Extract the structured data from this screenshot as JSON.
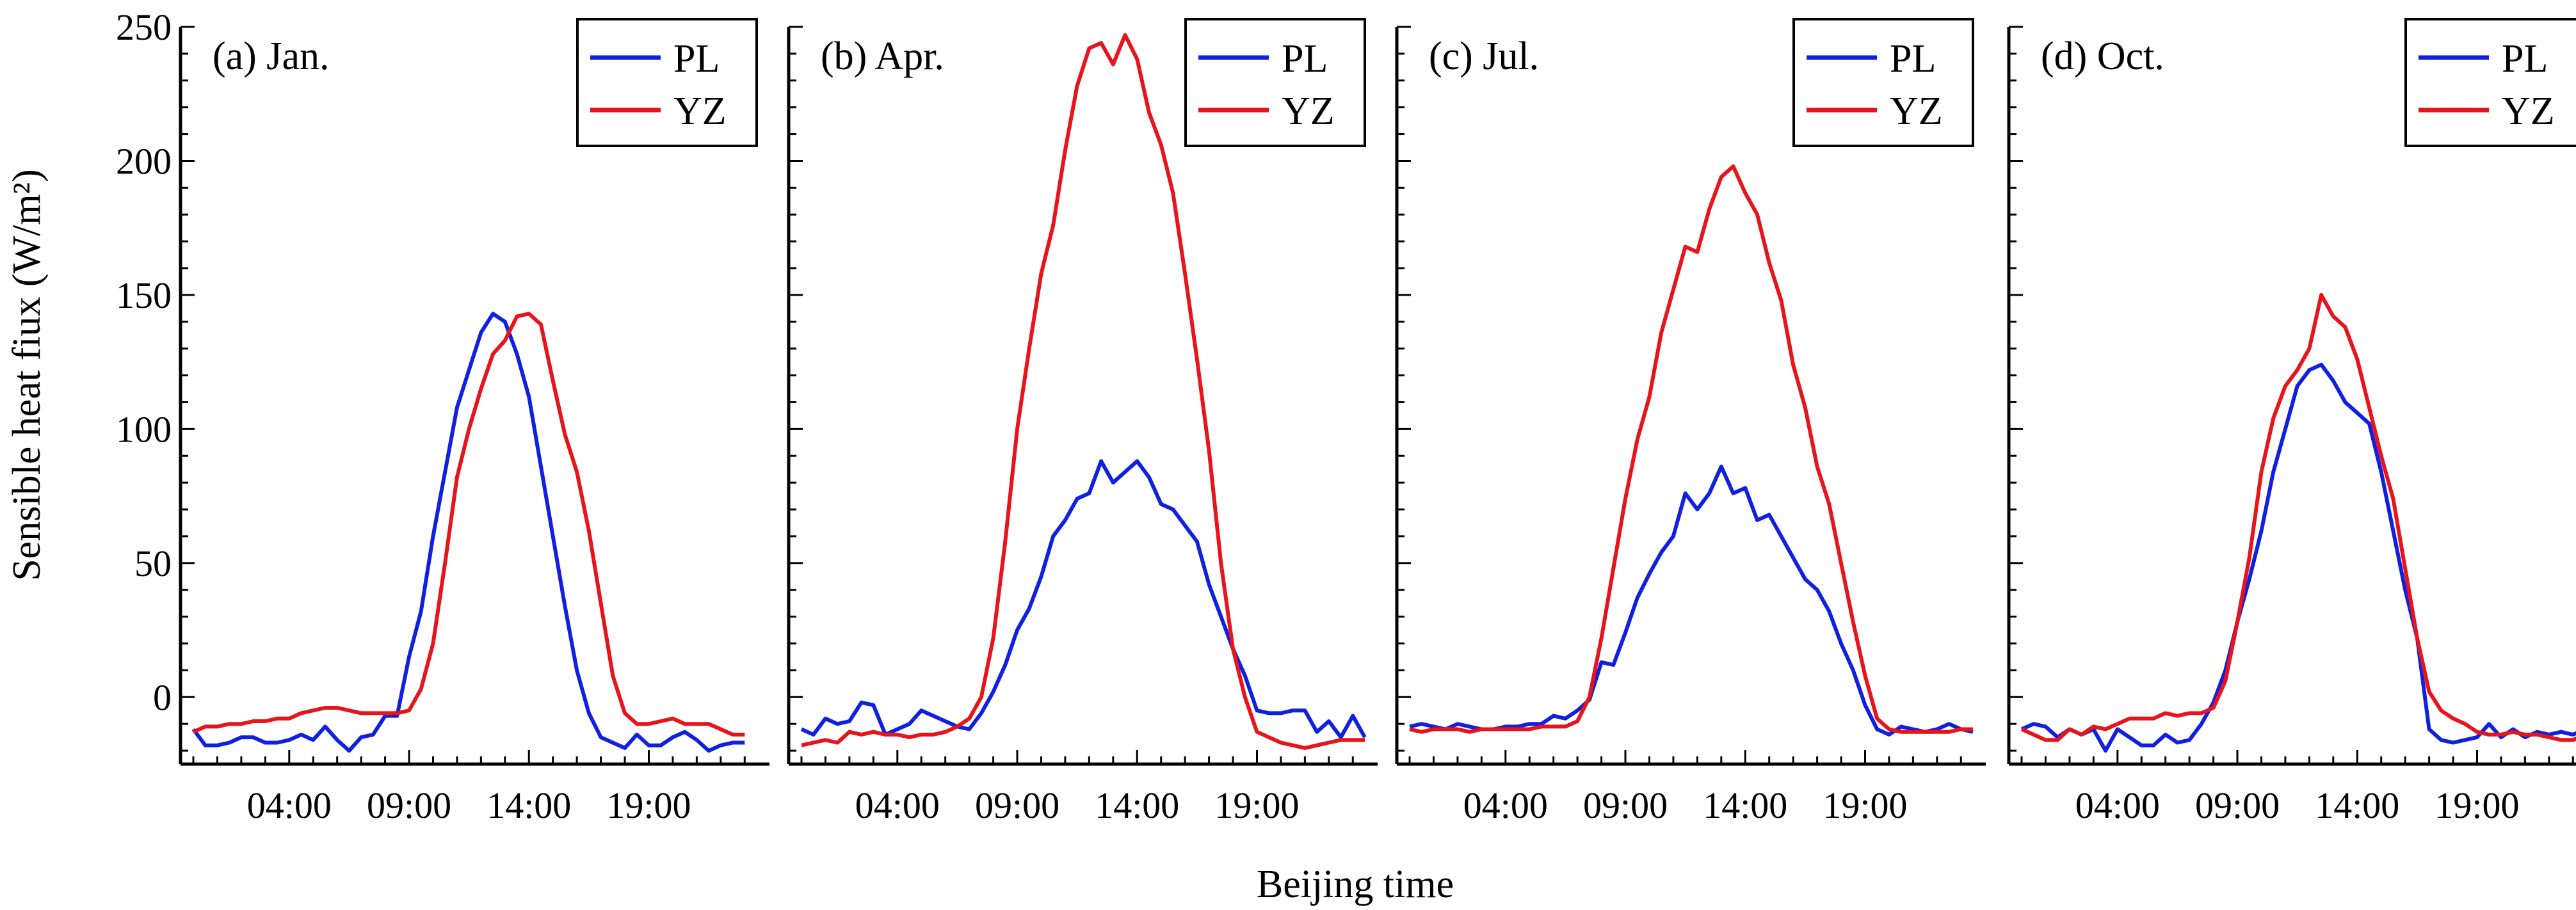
{
  "chart_data": {
    "type": "line",
    "ylabel": "Sensible heat fiux (W/m²)",
    "xlabel": "Beijing time",
    "ylim": [
      -25,
      250
    ],
    "yticks": [
      0,
      50,
      100,
      150,
      200,
      250
    ],
    "xticks": [
      4,
      9,
      14,
      19
    ],
    "xtick_labels": [
      "04:00",
      "09:00",
      "14:00",
      "19:00"
    ],
    "x_range": [
      0,
      23.5
    ],
    "legend_position": "top-right",
    "series_colors": {
      "PL": "#1020e0",
      "YZ": "#e8141c"
    },
    "x": [
      0,
      0.5,
      1,
      1.5,
      2,
      2.5,
      3,
      3.5,
      4,
      4.5,
      5,
      5.5,
      6,
      6.5,
      7,
      7.5,
      8,
      8.5,
      9,
      9.5,
      10,
      10.5,
      11,
      11.5,
      12,
      12.5,
      13,
      13.5,
      14,
      14.5,
      15,
      15.5,
      16,
      16.5,
      17,
      17.5,
      18,
      18.5,
      19,
      19.5,
      20,
      20.5,
      21,
      21.5,
      22,
      22.5,
      23,
      23.5
    ],
    "panels": [
      {
        "label": "(a) Jan.",
        "series": [
          {
            "name": "PL",
            "values": [
              -12,
              -18,
              -18,
              -17,
              -15,
              -15,
              -17,
              -17,
              -16,
              -14,
              -16,
              -11,
              -16,
              -20,
              -15,
              -14,
              -7,
              -7,
              15,
              32,
              60,
              84,
              108,
              122,
              136,
              143,
              140,
              128,
              112,
              86,
              60,
              34,
              10,
              -6,
              -15,
              -17,
              -19,
              -14,
              -18,
              -18,
              -15,
              -13,
              -16,
              -20,
              -18,
              -17,
              -17,
              null
            ]
          },
          {
            "name": "YZ",
            "values": [
              -13,
              -11,
              -11,
              -10,
              -10,
              -9,
              -9,
              -8,
              -8,
              -6,
              -5,
              -4,
              -4,
              -5,
              -6,
              -6,
              -6,
              -6,
              -5,
              3,
              20,
              50,
              82,
              100,
              115,
              128,
              133,
              142,
              143,
              139,
              118,
              98,
              84,
              62,
              35,
              8,
              -6,
              -10,
              -10,
              -9,
              -8,
              -10,
              -10,
              -10,
              -12,
              -14,
              -14,
              null
            ]
          }
        ]
      },
      {
        "label": "(b) Apr.",
        "series": [
          {
            "name": "PL",
            "values": [
              -12,
              -14,
              -8,
              -10,
              -9,
              -2,
              -3,
              -14,
              -12,
              -10,
              -5,
              -7,
              -9,
              -11,
              -12,
              -6,
              2,
              12,
              25,
              33,
              45,
              60,
              66,
              74,
              76,
              88,
              80,
              84,
              88,
              82,
              72,
              70,
              64,
              58,
              42,
              30,
              18,
              8,
              -5,
              -6,
              -6,
              -5,
              -5,
              -13,
              -9,
              -15,
              -7,
              -15
            ]
          },
          {
            "name": "YZ",
            "values": [
              -18,
              -17,
              -16,
              -17,
              -13,
              -14,
              -13,
              -14,
              -14,
              -15,
              -14,
              -14,
              -13,
              -11,
              -8,
              0,
              22,
              58,
              100,
              130,
              158,
              176,
              204,
              228,
              242,
              244,
              236,
              247,
              238,
              218,
              206,
              188,
              158,
              126,
              92,
              50,
              18,
              0,
              -13,
              -15,
              -17,
              -18,
              -19,
              -18,
              -17,
              -16,
              -16,
              -16
            ]
          }
        ]
      },
      {
        "label": "(c) Jul.",
        "series": [
          {
            "name": "PL",
            "values": [
              -11,
              -10,
              -11,
              -12,
              -10,
              -11,
              -12,
              -12,
              -11,
              -11,
              -10,
              -10,
              -7,
              -8,
              -5,
              -1,
              13,
              12,
              24,
              37,
              46,
              54,
              60,
              76,
              70,
              76,
              86,
              76,
              78,
              66,
              68,
              60,
              52,
              44,
              40,
              32,
              20,
              10,
              -3,
              -12,
              -14,
              -11,
              -12,
              -13,
              -12,
              -10,
              -12,
              -13
            ]
          },
          {
            "name": "YZ",
            "values": [
              -12,
              -13,
              -12,
              -12,
              -12,
              -13,
              -12,
              -12,
              -12,
              -12,
              -12,
              -11,
              -11,
              -11,
              -9,
              0,
              22,
              48,
              74,
              96,
              112,
              136,
              152,
              168,
              166,
              182,
              194,
              198,
              188,
              180,
              162,
              148,
              124,
              108,
              86,
              72,
              50,
              28,
              8,
              -8,
              -12,
              -13,
              -13,
              -13,
              -13,
              -13,
              -12,
              -12
            ]
          }
        ]
      },
      {
        "label": "(d) Oct.",
        "series": [
          {
            "name": "PL",
            "values": [
              -12,
              -10,
              -11,
              -15,
              -12,
              -14,
              -12,
              -20,
              -12,
              -15,
              -18,
              -18,
              -14,
              -17,
              -16,
              -10,
              -2,
              10,
              28,
              44,
              62,
              84,
              100,
              116,
              122,
              124,
              118,
              110,
              106,
              102,
              84,
              62,
              40,
              22,
              -12,
              -16,
              -17,
              -16,
              -15,
              -10,
              -15,
              -12,
              -15,
              -13,
              -14,
              -13,
              -14,
              -12
            ]
          },
          {
            "name": "YZ",
            "values": [
              -12,
              -14,
              -16,
              -16,
              -12,
              -14,
              -11,
              -12,
              -10,
              -8,
              -8,
              -8,
              -6,
              -7,
              -6,
              -6,
              -4,
              6,
              28,
              52,
              84,
              104,
              116,
              122,
              130,
              150,
              142,
              138,
              126,
              108,
              90,
              74,
              48,
              22,
              2,
              -5,
              -8,
              -10,
              -13,
              -14,
              -14,
              -13,
              -14,
              -14,
              -15,
              -16,
              -16,
              -14
            ]
          }
        ]
      }
    ],
    "legend": [
      "PL",
      "YZ"
    ]
  }
}
